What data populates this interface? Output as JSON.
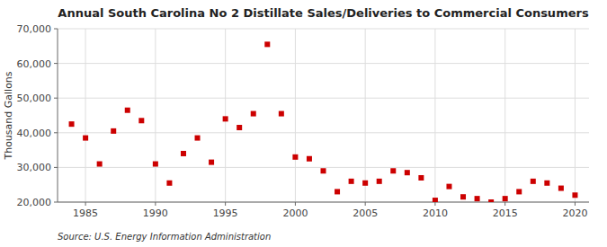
{
  "chart_data": {
    "type": "scatter",
    "title": "Annual South Carolina No 2 Distillate Sales/Deliveries to Commercial Consumers",
    "y_label": "Thousand Gallons",
    "source": "Source: U.S. Energy Information Administration",
    "x": [
      1984,
      1985,
      1986,
      1987,
      1988,
      1989,
      1990,
      1991,
      1992,
      1993,
      1994,
      1995,
      1996,
      1997,
      1998,
      1999,
      2000,
      2001,
      2002,
      2003,
      2004,
      2005,
      2006,
      2007,
      2008,
      2009,
      2010,
      2011,
      2012,
      2013,
      2014,
      2015,
      2016,
      2017,
      2018,
      2019,
      2020
    ],
    "values": [
      42500,
      38500,
      31000,
      40500,
      46500,
      43500,
      31000,
      25500,
      34000,
      38500,
      31500,
      44000,
      41500,
      45500,
      65500,
      45500,
      33000,
      32500,
      29000,
      23000,
      26000,
      25500,
      26000,
      29000,
      28500,
      27000,
      20500,
      24500,
      21500,
      21000,
      20000,
      21000,
      23000,
      26000,
      25500,
      24000,
      22000
    ],
    "color": "#cc0000",
    "marker": "square",
    "xlim": [
      1983,
      2021
    ],
    "ylim": [
      20000,
      70000
    ],
    "xticks": [
      1985,
      1990,
      1995,
      2000,
      2005,
      2010,
      2015,
      2020
    ],
    "yticks": [
      {
        "value": 20000,
        "label": "20,000"
      },
      {
        "value": 30000,
        "label": "30,000"
      },
      {
        "value": 40000,
        "label": "40,000"
      },
      {
        "value": 50000,
        "label": "50,000"
      },
      {
        "value": 60000,
        "label": "60,000"
      },
      {
        "value": 70000,
        "label": "70,000"
      }
    ],
    "grid": true
  }
}
